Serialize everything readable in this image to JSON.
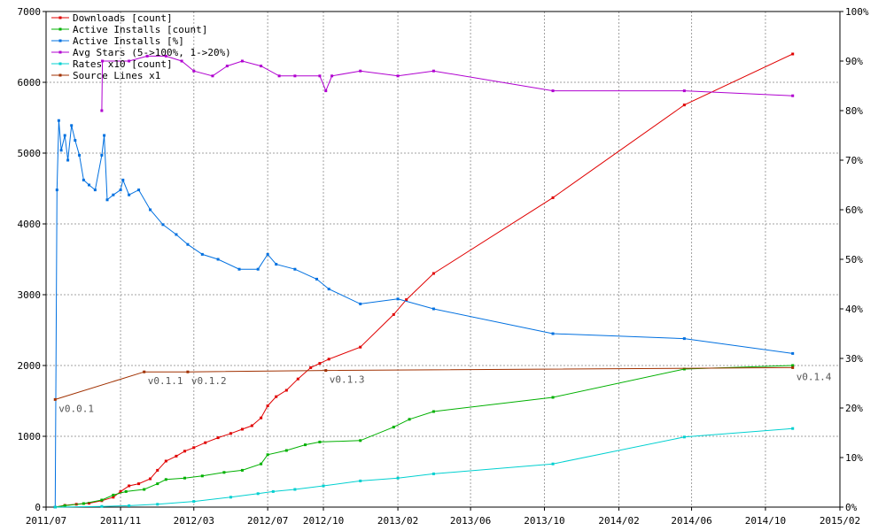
{
  "chart_data": {
    "type": "line",
    "title": "",
    "xlabel": "",
    "ylabel": "",
    "x_type": "date",
    "xlim": [
      "2011-07-01",
      "2015-02-01"
    ],
    "ylim_left": [
      0,
      7000
    ],
    "ylim_right": [
      0,
      100
    ],
    "x_ticks": [
      "2011/07",
      "2011/11",
      "2012/03",
      "2012/07",
      "2012/10",
      "2013/02",
      "2013/06",
      "2013/10",
      "2014/02",
      "2014/06",
      "2014/10",
      "2015/02"
    ],
    "y_ticks_left": [
      "0",
      "1000",
      "2000",
      "3000",
      "4000",
      "5000",
      "6000",
      "7000"
    ],
    "y_ticks_right": [
      "0%",
      "10%",
      "20%",
      "30%",
      "40%",
      "50%",
      "60%",
      "70%",
      "80%",
      "90%",
      "100%"
    ],
    "grid": true,
    "grid_style": "dashed",
    "legend_position": "top-left",
    "series": [
      {
        "name": "Downloads [count]",
        "color": "#e00000",
        "axis": "left",
        "points": [
          [
            "2011-07-16",
            0
          ],
          [
            "2011-08-01",
            25
          ],
          [
            "2011-08-20",
            40
          ],
          [
            "2011-09-10",
            55
          ],
          [
            "2011-10-01",
            90
          ],
          [
            "2011-10-20",
            140
          ],
          [
            "2011-11-01",
            220
          ],
          [
            "2011-11-15",
            300
          ],
          [
            "2011-12-01",
            330
          ],
          [
            "2011-12-20",
            400
          ],
          [
            "2012-01-01",
            520
          ],
          [
            "2012-01-15",
            650
          ],
          [
            "2012-02-01",
            720
          ],
          [
            "2012-02-15",
            790
          ],
          [
            "2012-03-01",
            840
          ],
          [
            "2012-03-20",
            910
          ],
          [
            "2012-04-10",
            980
          ],
          [
            "2012-05-01",
            1040
          ],
          [
            "2012-05-20",
            1100
          ],
          [
            "2012-06-05",
            1150
          ],
          [
            "2012-06-20",
            1260
          ],
          [
            "2012-07-01",
            1430
          ],
          [
            "2012-07-15",
            1560
          ],
          [
            "2012-08-01",
            1650
          ],
          [
            "2012-08-20",
            1810
          ],
          [
            "2012-09-10",
            1970
          ],
          [
            "2012-09-25",
            2030
          ],
          [
            "2012-10-10",
            2090
          ],
          [
            "2012-12-01",
            2260
          ],
          [
            "2013-01-25",
            2720
          ],
          [
            "2013-02-15",
            2930
          ],
          [
            "2013-04-01",
            3300
          ],
          [
            "2013-10-15",
            4370
          ],
          [
            "2014-05-20",
            5680
          ],
          [
            "2014-11-15",
            6400
          ]
        ]
      },
      {
        "name": "Active Installs [count]",
        "color": "#00b000",
        "axis": "left",
        "points": [
          [
            "2011-07-16",
            0
          ],
          [
            "2011-08-01",
            20
          ],
          [
            "2011-09-01",
            50
          ],
          [
            "2011-10-01",
            100
          ],
          [
            "2011-10-20",
            170
          ],
          [
            "2011-11-10",
            220
          ],
          [
            "2011-12-10",
            250
          ],
          [
            "2012-01-01",
            330
          ],
          [
            "2012-01-15",
            390
          ],
          [
            "2012-02-15",
            410
          ],
          [
            "2012-03-15",
            440
          ],
          [
            "2012-04-20",
            490
          ],
          [
            "2012-05-20",
            520
          ],
          [
            "2012-06-20",
            610
          ],
          [
            "2012-07-01",
            740
          ],
          [
            "2012-08-01",
            800
          ],
          [
            "2012-09-01",
            880
          ],
          [
            "2012-09-25",
            920
          ],
          [
            "2012-12-01",
            940
          ],
          [
            "2013-01-25",
            1130
          ],
          [
            "2013-02-20",
            1240
          ],
          [
            "2013-04-01",
            1350
          ],
          [
            "2013-10-15",
            1550
          ],
          [
            "2014-05-20",
            1950
          ],
          [
            "2014-11-15",
            2000
          ]
        ]
      },
      {
        "name": "Active Installs [%]",
        "color": "#0070e0",
        "axis": "right",
        "points": [
          [
            "2011-07-16",
            0
          ],
          [
            "2011-07-19",
            64
          ],
          [
            "2011-07-22",
            78
          ],
          [
            "2011-07-26",
            72
          ],
          [
            "2011-08-01",
            75
          ],
          [
            "2011-08-06",
            70
          ],
          [
            "2011-08-12",
            77
          ],
          [
            "2011-08-18",
            74
          ],
          [
            "2011-08-25",
            71
          ],
          [
            "2011-09-01",
            66
          ],
          [
            "2011-09-10",
            65
          ],
          [
            "2011-09-20",
            64
          ],
          [
            "2011-10-01",
            71
          ],
          [
            "2011-10-05",
            75
          ],
          [
            "2011-10-10",
            62
          ],
          [
            "2011-10-20",
            63
          ],
          [
            "2011-11-01",
            64
          ],
          [
            "2011-11-05",
            66
          ],
          [
            "2011-11-15",
            63
          ],
          [
            "2011-12-01",
            64
          ],
          [
            "2011-12-20",
            60
          ],
          [
            "2012-01-10",
            57
          ],
          [
            "2012-02-01",
            55
          ],
          [
            "2012-02-20",
            53
          ],
          [
            "2012-03-15",
            51
          ],
          [
            "2012-04-10",
            50
          ],
          [
            "2012-05-15",
            48
          ],
          [
            "2012-06-15",
            48
          ],
          [
            "2012-07-01",
            51
          ],
          [
            "2012-07-15",
            49
          ],
          [
            "2012-08-15",
            48
          ],
          [
            "2012-09-20",
            46
          ],
          [
            "2012-10-10",
            44
          ],
          [
            "2012-12-01",
            41
          ],
          [
            "2013-02-01",
            42
          ],
          [
            "2013-04-01",
            40
          ],
          [
            "2013-10-15",
            35
          ],
          [
            "2014-05-20",
            34
          ],
          [
            "2014-11-15",
            31
          ]
        ]
      },
      {
        "name": "Avg Stars (5->100%, 1->20%)",
        "color": "#b000d0",
        "axis": "right",
        "points": [
          [
            "2011-10-01",
            80
          ],
          [
            "2011-10-02",
            90
          ],
          [
            "2011-11-15",
            90
          ],
          [
            "2011-12-15",
            91
          ],
          [
            "2012-01-15",
            91
          ],
          [
            "2012-02-10",
            90
          ],
          [
            "2012-03-01",
            88
          ],
          [
            "2012-04-01",
            87
          ],
          [
            "2012-04-25",
            89
          ],
          [
            "2012-05-20",
            90
          ],
          [
            "2012-06-20",
            89
          ],
          [
            "2012-07-20",
            87
          ],
          [
            "2012-08-15",
            87
          ],
          [
            "2012-09-25",
            87
          ],
          [
            "2012-10-05",
            84
          ],
          [
            "2012-10-15",
            87
          ],
          [
            "2012-12-01",
            88
          ],
          [
            "2013-02-01",
            87
          ],
          [
            "2013-04-01",
            88
          ],
          [
            "2013-10-15",
            84
          ],
          [
            "2014-05-20",
            84
          ],
          [
            "2014-11-15",
            83
          ]
        ]
      },
      {
        "name": "Rates x10 [count]",
        "color": "#00d0d0",
        "axis": "left",
        "points": [
          [
            "2011-07-16",
            0
          ],
          [
            "2011-10-01",
            10
          ],
          [
            "2011-11-15",
            20
          ],
          [
            "2012-01-01",
            40
          ],
          [
            "2012-03-01",
            80
          ],
          [
            "2012-05-01",
            140
          ],
          [
            "2012-06-15",
            190
          ],
          [
            "2012-07-10",
            220
          ],
          [
            "2012-08-15",
            250
          ],
          [
            "2012-10-01",
            300
          ],
          [
            "2012-12-01",
            370
          ],
          [
            "2013-02-01",
            410
          ],
          [
            "2013-04-01",
            470
          ],
          [
            "2013-10-15",
            610
          ],
          [
            "2014-05-20",
            990
          ],
          [
            "2014-11-15",
            1110
          ]
        ]
      },
      {
        "name": "Source Lines x1",
        "color": "#a03000",
        "axis": "left",
        "points": [
          [
            "2011-07-16",
            1520
          ],
          [
            "2011-12-10",
            1910
          ],
          [
            "2012-02-20",
            1910
          ],
          [
            "2012-10-05",
            1930
          ],
          [
            "2014-11-15",
            1970
          ]
        ]
      }
    ],
    "annotations": [
      {
        "x": "2011-07-16",
        "y": 1520,
        "text": "v0.0.1"
      },
      {
        "x": "2011-12-10",
        "y": 1910,
        "text": "v0.1.1"
      },
      {
        "x": "2012-02-20",
        "y": 1910,
        "text": "v0.1.2"
      },
      {
        "x": "2012-10-05",
        "y": 1930,
        "text": "v0.1.3"
      },
      {
        "x": "2014-11-15",
        "y": 1970,
        "text": "v0.1.4"
      }
    ]
  }
}
